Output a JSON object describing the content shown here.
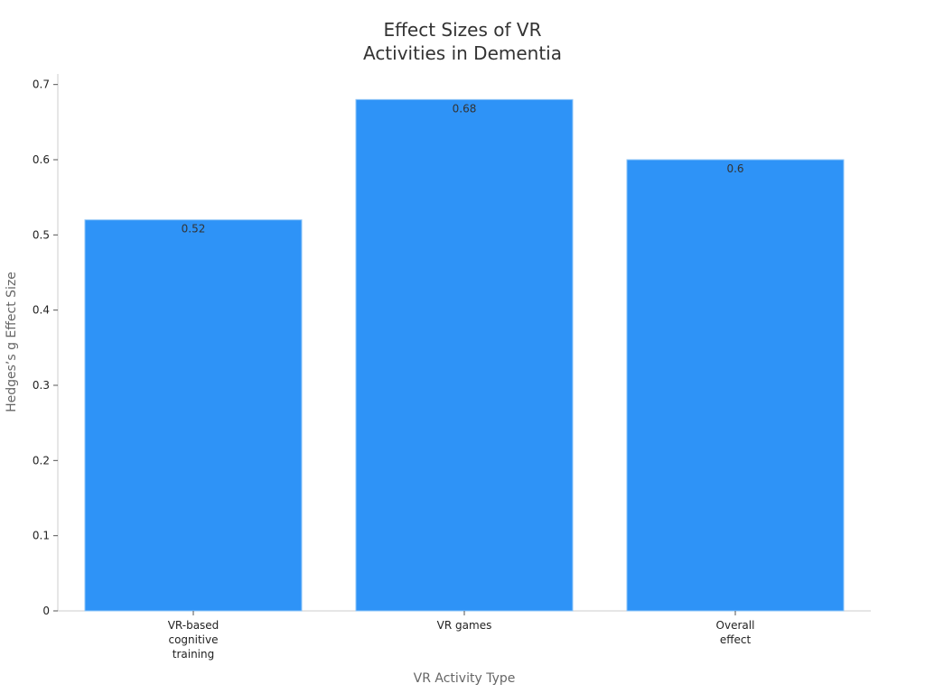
{
  "chart_data": {
    "type": "bar",
    "title_lines": [
      "Effect Sizes of VR",
      "Activities in Dementia"
    ],
    "xlabel": "VR Activity Type",
    "ylabel": "Hedges’s g Effect Size",
    "categories": [
      [
        "VR-based",
        "cognitive",
        "training"
      ],
      [
        "VR games"
      ],
      [
        "Overall",
        "effect"
      ]
    ],
    "values": [
      0.52,
      0.68,
      0.6
    ],
    "value_labels": [
      "0.52",
      "0.68",
      "0.6"
    ],
    "yticks": [
      0,
      0.1,
      0.2,
      0.3,
      0.4,
      0.5,
      0.6,
      0.7
    ],
    "ytick_labels": [
      "0",
      "0.1",
      "0.2",
      "0.3",
      "0.4",
      "0.5",
      "0.6",
      "0.7"
    ],
    "ylim": [
      0,
      0.714
    ],
    "grid": false,
    "legend": "none",
    "colors": {
      "bar_fill": "#2e93f7",
      "bar_stroke": "#8ec4f7",
      "axis": "#cccccc"
    }
  }
}
